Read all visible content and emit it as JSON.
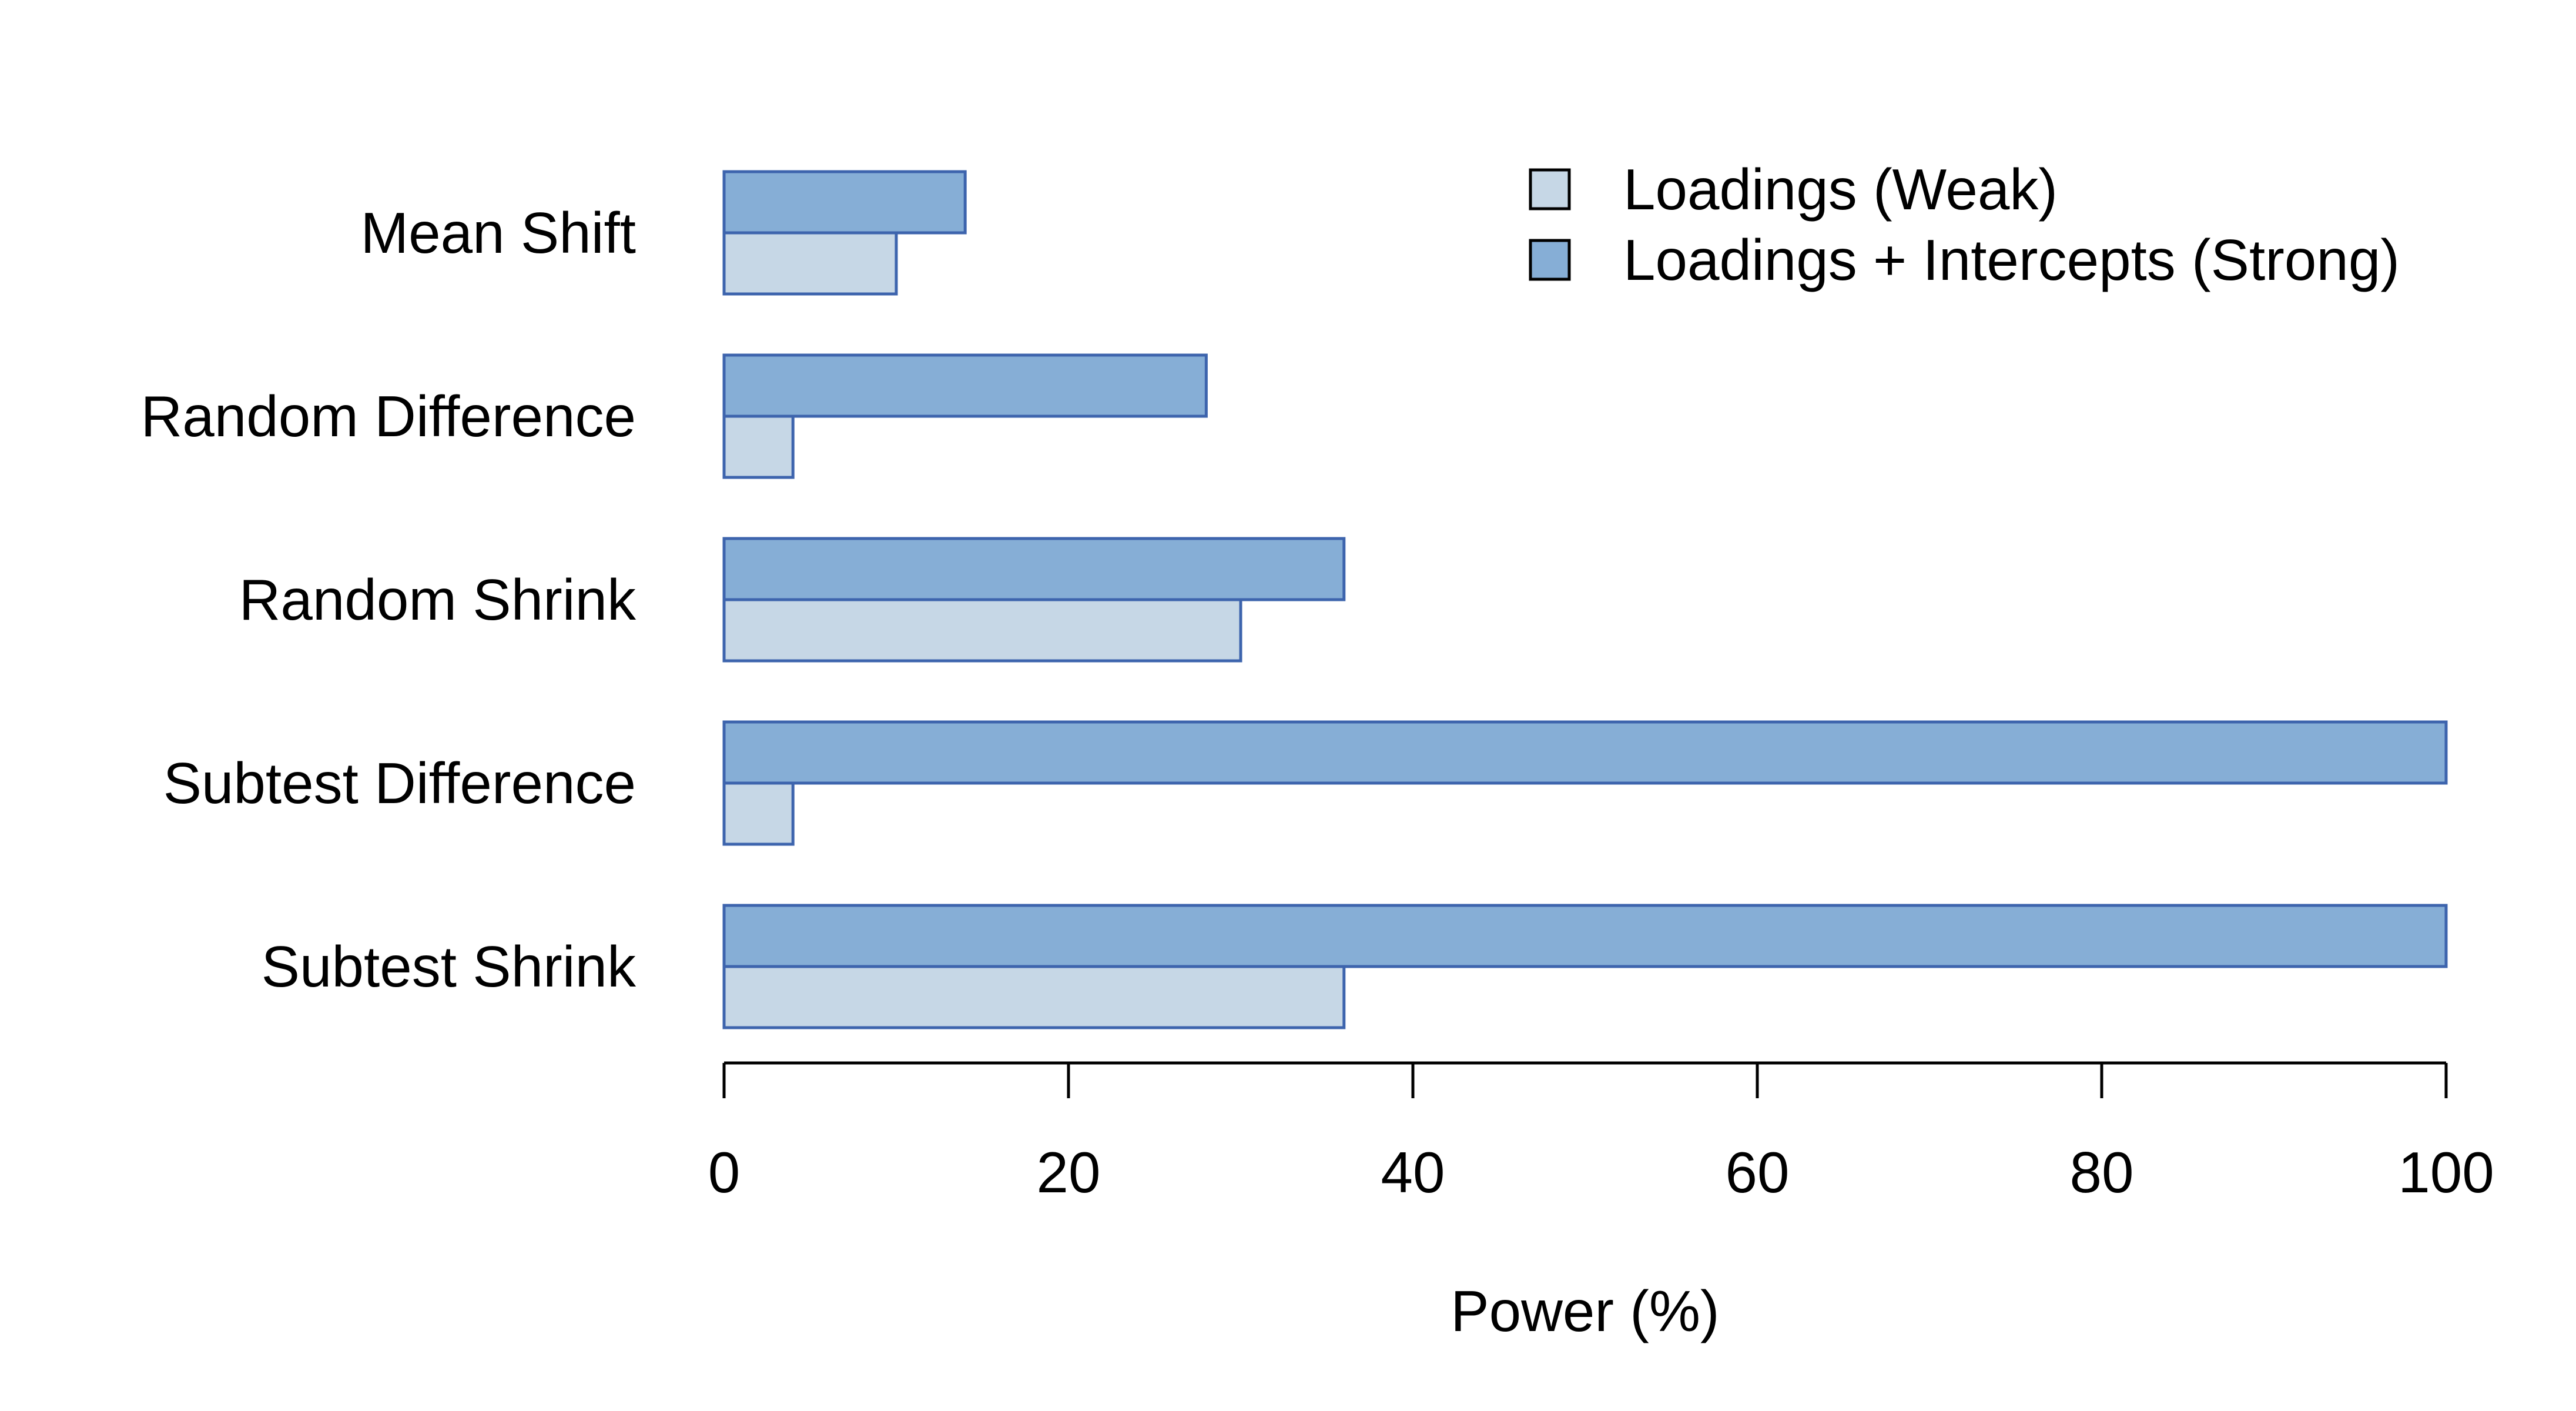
{
  "chart_data": {
    "type": "bar",
    "orientation": "horizontal",
    "categories": [
      "Mean Shift",
      "Random Difference",
      "Random Shrink",
      "Subtest Difference",
      "Subtest Shrink"
    ],
    "series": [
      {
        "name": "Loadings (Weak)",
        "values": [
          10,
          4,
          30,
          4,
          36
        ],
        "color": "#c6d7e6"
      },
      {
        "name": "Loadings + Intercepts (Strong)",
        "values": [
          14,
          28,
          36,
          100,
          100
        ],
        "color": "#86aed6"
      }
    ],
    "bar_border_color": "#3d64ad",
    "xlabel": "Power (%)",
    "ylabel": "",
    "xlim": [
      0,
      100
    ],
    "xticks": [
      0,
      20,
      40,
      60,
      80,
      100
    ],
    "grid": false,
    "legend": "top-right"
  }
}
